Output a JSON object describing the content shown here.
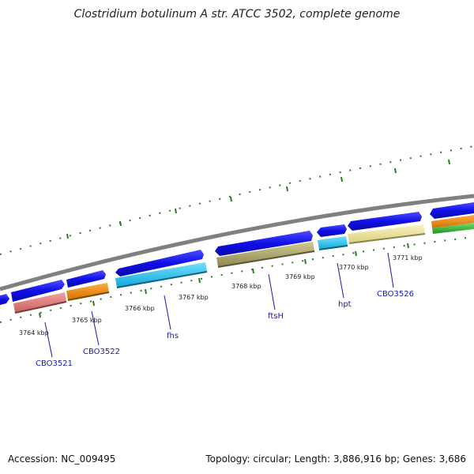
{
  "title": "Clostridium botulinum A str. ATCC 3502, complete genome",
  "footer": {
    "accession": "Accession: NC_009495",
    "summary": "Topology: circular; Length: 3,886,916 bp; Genes: 3,686"
  },
  "kbp_labels": [
    "3764 kbp",
    "3765 kbp",
    "3766 kbp",
    "3767 kbp",
    "3768 kbp",
    "3769 kbp",
    "3770 kbp",
    "3771 kbp"
  ],
  "gene_labels": [
    "CBO3521",
    "CBO3522",
    "fhs",
    "ftsH",
    "hpt",
    "CBO3526"
  ],
  "colors": {
    "backbone": "#808080",
    "forward_cds": "#1010e8",
    "ticks": "#2a7a2a",
    "label": "#1a1aa8",
    "gene_pink": "#e88080",
    "gene_orange": "#f08a10",
    "gene_cyan": "#20c0f0",
    "gene_olive": "#b0aa70",
    "gene_yellow": "#f0e8a0",
    "gene_green": "#40c040"
  }
}
